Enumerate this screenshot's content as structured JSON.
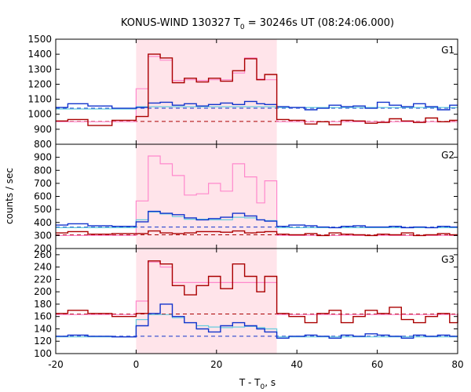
{
  "chart_data": {
    "type": "line",
    "title_main": "KONUS-WIND 130327 T",
    "title_sub": "0",
    "title_rest": " = 30246s UT (08:24:06.000)",
    "xlabel_main": "T - T",
    "xlabel_sub": "0",
    "xlabel_rest": ", s",
    "ylabel": "counts / sec",
    "xlim": [
      -20,
      80
    ],
    "xticks": [
      "-20",
      "0",
      "20",
      "40",
      "60",
      "80"
    ],
    "highlight_interval": [
      0,
      35
    ],
    "colors": {
      "high": "#aa0000",
      "low": "#1133cc",
      "model_high": "#ff88cc",
      "model_low": "#66ccdd",
      "background_high": "#aa0000",
      "background_low": "#1133cc",
      "highlight": "#ffe4ea"
    },
    "panels": [
      {
        "label": "G1",
        "ylim": [
          800,
          1500
        ],
        "yticks": [
          "800",
          "900",
          "1000",
          "1100",
          "1200",
          "1300",
          "1400",
          "1500"
        ],
        "background_high": 952,
        "background_low": 1040,
        "series": [
          {
            "role": "high",
            "x": [
              -20,
              -17,
              -12,
              -6,
              0,
              3,
              6,
              9,
              12,
              15,
              18,
              21,
              24,
              27,
              30,
              32,
              35,
              38,
              42,
              45,
              48,
              51,
              54,
              57,
              60,
              63,
              66,
              69,
              72,
              75,
              78,
              80
            ],
            "y": [
              955,
              965,
              925,
              960,
              985,
              1400,
              1375,
              1210,
              1240,
              1215,
              1240,
              1220,
              1290,
              1370,
              1230,
              1265,
              965,
              960,
              935,
              950,
              930,
              960,
              955,
              940,
              945,
              970,
              955,
              945,
              975,
              950,
              960,
              960
            ]
          },
          {
            "role": "low",
            "x": [
              -20,
              -17,
              -12,
              -6,
              0,
              3,
              6,
              9,
              12,
              15,
              18,
              21,
              24,
              27,
              30,
              32,
              35,
              38,
              42,
              45,
              48,
              51,
              54,
              57,
              60,
              63,
              66,
              69,
              72,
              75,
              78,
              80
            ],
            "y": [
              1045,
              1070,
              1055,
              1040,
              1045,
              1075,
              1080,
              1060,
              1070,
              1055,
              1065,
              1075,
              1065,
              1085,
              1070,
              1065,
              1050,
              1045,
              1030,
              1040,
              1060,
              1050,
              1055,
              1040,
              1080,
              1060,
              1050,
              1070,
              1050,
              1030,
              1060,
              1060
            ]
          },
          {
            "role": "model_high",
            "x": [
              -20,
              0,
              3,
              6,
              9,
              12,
              15,
              18,
              21,
              24,
              27,
              30,
              32,
              35,
              80
            ],
            "y": [
              950,
              1170,
              1385,
              1360,
              1225,
              1230,
              1225,
              1230,
              1230,
              1275,
              1375,
              1235,
              1230,
              950,
              950
            ]
          },
          {
            "role": "model_low",
            "x": [
              -20,
              0,
              35,
              80
            ],
            "y": [
              1035,
              1050,
              1045,
              1040
            ]
          }
        ]
      },
      {
        "label": "G2",
        "ylim": [
          200,
          1000
        ],
        "yticks": [
          "200",
          "300",
          "400",
          "500",
          "600",
          "700",
          "800",
          "900"
        ],
        "background_high": 305,
        "background_low": 365,
        "series": [
          {
            "role": "high",
            "x": [
              -20,
              -17,
              -12,
              -6,
              0,
              3,
              6,
              9,
              12,
              15,
              18,
              21,
              24,
              27,
              30,
              32,
              35,
              38,
              42,
              45,
              48,
              51,
              54,
              57,
              60,
              63,
              66,
              69,
              72,
              75,
              78,
              80
            ],
            "y": [
              320,
              330,
              310,
              315,
              315,
              335,
              320,
              315,
              320,
              330,
              330,
              325,
              335,
              320,
              325,
              330,
              310,
              305,
              315,
              300,
              320,
              310,
              305,
              300,
              310,
              305,
              320,
              300,
              305,
              315,
              305,
              305
            ]
          },
          {
            "role": "low",
            "x": [
              -20,
              -17,
              -12,
              -6,
              0,
              3,
              6,
              9,
              12,
              15,
              18,
              21,
              24,
              27,
              30,
              32,
              35,
              38,
              42,
              45,
              48,
              51,
              54,
              57,
              60,
              63,
              66,
              69,
              72,
              75,
              78,
              80
            ],
            "y": [
              380,
              390,
              375,
              370,
              405,
              485,
              470,
              460,
              435,
              420,
              430,
              440,
              470,
              450,
              420,
              410,
              370,
              380,
              375,
              365,
              360,
              370,
              375,
              365,
              365,
              370,
              360,
              365,
              360,
              370,
              365,
              365
            ]
          },
          {
            "role": "model_high",
            "x": [
              -20,
              0,
              3,
              6,
              9,
              12,
              15,
              18,
              21,
              24,
              27,
              30,
              32,
              35,
              80
            ],
            "y": [
              300,
              565,
              910,
              850,
              760,
              610,
              620,
              700,
              640,
              850,
              750,
              550,
              720,
              300,
              300
            ]
          },
          {
            "role": "model_low",
            "x": [
              -20,
              0,
              3,
              6,
              9,
              12,
              15,
              18,
              21,
              24,
              27,
              30,
              32,
              35,
              80
            ],
            "y": [
              360,
              420,
              480,
              465,
              445,
              425,
              425,
              420,
              420,
              440,
              435,
              420,
              415,
              360,
              360
            ]
          }
        ]
      },
      {
        "label": "G3",
        "ylim": [
          100,
          270
        ],
        "yticks": [
          "100",
          "120",
          "140",
          "160",
          "180",
          "200",
          "220",
          "240",
          "260"
        ],
        "background_high": 164,
        "background_low": 128,
        "series": [
          {
            "role": "high",
            "x": [
              -20,
              -17,
              -12,
              -6,
              0,
              3,
              6,
              9,
              12,
              15,
              18,
              21,
              24,
              27,
              30,
              32,
              35,
              38,
              42,
              45,
              48,
              51,
              54,
              57,
              60,
              63,
              66,
              69,
              72,
              75,
              78,
              80
            ],
            "y": [
              165,
              170,
              165,
              160,
              165,
              250,
              245,
              210,
              195,
              210,
              225,
              205,
              245,
              225,
              200,
              225,
              165,
              160,
              150,
              165,
              170,
              150,
              160,
              170,
              165,
              175,
              155,
              150,
              160,
              165,
              150,
              165
            ]
          },
          {
            "role": "low",
            "x": [
              -20,
              -17,
              -12,
              -6,
              0,
              3,
              6,
              9,
              12,
              15,
              18,
              21,
              24,
              27,
              30,
              32,
              35,
              38,
              42,
              45,
              48,
              51,
              54,
              57,
              60,
              63,
              66,
              69,
              72,
              75,
              78,
              80
            ],
            "y": [
              128,
              130,
              128,
              127,
              145,
              165,
              180,
              160,
              150,
              140,
              135,
              145,
              150,
              145,
              140,
              135,
              125,
              128,
              130,
              128,
              125,
              130,
              128,
              132,
              130,
              128,
              125,
              130,
              128,
              130,
              128,
              128
            ]
          },
          {
            "role": "model_high",
            "x": [
              -20,
              0,
              3,
              6,
              9,
              12,
              15,
              18,
              21,
              24,
              27,
              30,
              32,
              35,
              80
            ],
            "y": [
              163,
              185,
              248,
              240,
              215,
              215,
              215,
              215,
              215,
              215,
              215,
              215,
              215,
              163,
              163
            ]
          },
          {
            "role": "model_low",
            "x": [
              -20,
              0,
              3,
              6,
              9,
              12,
              15,
              18,
              21,
              24,
              27,
              30,
              32,
              35,
              80
            ],
            "y": [
              127,
              155,
              163,
              163,
              158,
              150,
              145,
              143,
              142,
              143,
              144,
              142,
              140,
              127,
              127
            ]
          }
        ]
      }
    ]
  }
}
